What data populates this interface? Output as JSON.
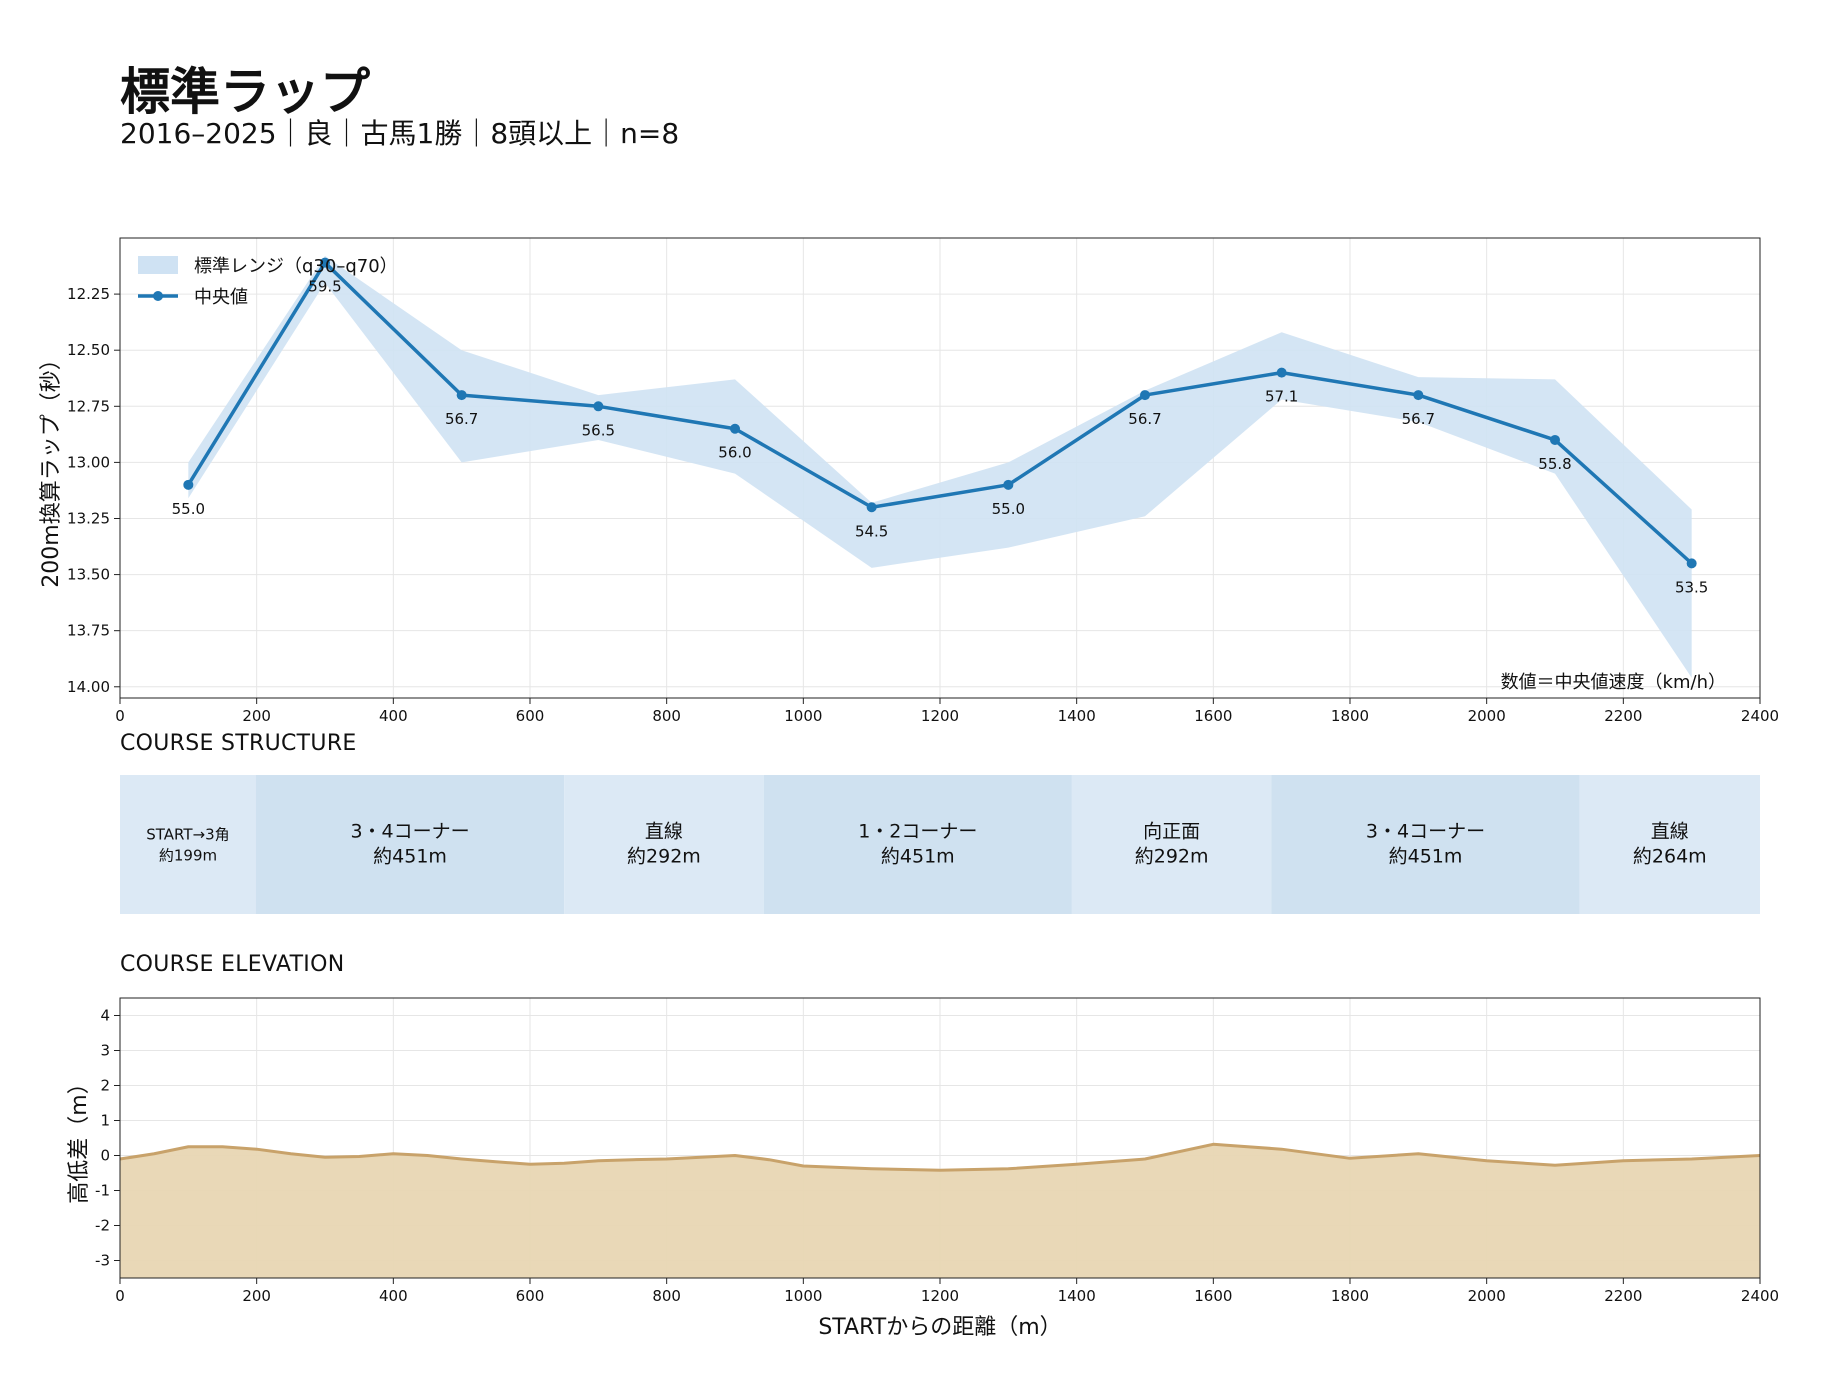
{
  "page": {
    "title": "標準ラップ",
    "subtitle": "2016–2025｜良｜古馬1勝｜8頭以上｜n=8",
    "structure_title": "COURSE STRUCTURE",
    "elevation_title": "COURSE ELEVATION"
  },
  "chart_data": [
    {
      "type": "line",
      "ylabel": "200m換算ラップ（秒）",
      "xlim": [
        0,
        2400
      ],
      "ylim": [
        14.05,
        12.0
      ],
      "y_inverted": true,
      "x_ticks": [
        0,
        200,
        400,
        600,
        800,
        1000,
        1200,
        1400,
        1600,
        1800,
        2000,
        2200,
        2400
      ],
      "y_ticks": [
        "12.25",
        "12.50",
        "12.75",
        "13.00",
        "13.25",
        "13.50",
        "13.75",
        "14.00"
      ],
      "grid": true,
      "legend_position": "top-left",
      "legend": [
        "標準レンジ（q30–q70）",
        "中央値"
      ],
      "annotation": "数値＝中央値速度（km/h）",
      "series": [
        {
          "name": "中央値",
          "x": [
            100,
            300,
            500,
            700,
            900,
            1100,
            1300,
            1500,
            1700,
            1900,
            2100,
            2300
          ],
          "y": [
            13.1,
            12.11,
            12.7,
            12.75,
            12.85,
            13.2,
            13.1,
            12.7,
            12.6,
            12.7,
            12.9,
            13.45
          ],
          "labels": [
            "55.0",
            "59.5",
            "56.7",
            "56.5",
            "56.0",
            "54.5",
            "55.0",
            "56.7",
            "57.1",
            "56.7",
            "55.8",
            "53.5"
          ],
          "color": "#1f77b4"
        },
        {
          "name": "標準レンジ（q30–q70）",
          "x": [
            100,
            300,
            500,
            700,
            900,
            1100,
            1300,
            1500,
            1700,
            1900,
            2100,
            2300
          ],
          "low": [
            13.0,
            12.08,
            12.5,
            12.7,
            12.63,
            13.18,
            13.0,
            12.68,
            12.42,
            12.62,
            12.63,
            13.21
          ],
          "high": [
            13.16,
            12.2,
            13.0,
            12.9,
            13.05,
            13.47,
            13.38,
            13.24,
            12.72,
            12.82,
            13.05,
            13.96
          ],
          "color": "#cfe2f3"
        }
      ]
    },
    {
      "type": "table",
      "segments": [
        {
          "name": "START→3角",
          "length": "約199m",
          "start": 0,
          "end": 199,
          "tone": "light"
        },
        {
          "name": "3・4コーナー",
          "length": "約451m",
          "start": 199,
          "end": 650,
          "tone": "dark"
        },
        {
          "name": "直線",
          "length": "約292m",
          "start": 650,
          "end": 942,
          "tone": "light"
        },
        {
          "name": "1・2コーナー",
          "length": "約451m",
          "start": 942,
          "end": 1393,
          "tone": "dark"
        },
        {
          "name": "向正面",
          "length": "約292m",
          "start": 1393,
          "end": 1685,
          "tone": "light"
        },
        {
          "name": "3・4コーナー",
          "length": "約451m",
          "start": 1685,
          "end": 2136,
          "tone": "dark"
        },
        {
          "name": "直線",
          "length": "約264m",
          "start": 2136,
          "end": 2400,
          "tone": "light"
        }
      ],
      "colors": {
        "light": "#dce9f5",
        "dark": "#cfe1f0"
      }
    },
    {
      "type": "area",
      "xlabel": "STARTからの距離（m）",
      "ylabel": "高低差（m）",
      "xlim": [
        0,
        2400
      ],
      "ylim": [
        -3.5,
        4.5
      ],
      "x_ticks": [
        0,
        200,
        400,
        600,
        800,
        1000,
        1200,
        1400,
        1600,
        1800,
        2000,
        2200,
        2400
      ],
      "y_ticks": [
        "4",
        "3",
        "2",
        "1",
        "0",
        "-1",
        "-2",
        "-3"
      ],
      "grid": true,
      "x": [
        0,
        50,
        100,
        150,
        200,
        250,
        300,
        350,
        400,
        450,
        500,
        550,
        600,
        650,
        700,
        750,
        800,
        850,
        900,
        950,
        1000,
        1100,
        1200,
        1300,
        1400,
        1500,
        1600,
        1700,
        1800,
        1900,
        2000,
        2100,
        2200,
        2300,
        2400
      ],
      "y": [
        -0.1,
        0.05,
        0.25,
        0.25,
        0.18,
        0.05,
        -0.05,
        -0.03,
        0.05,
        0.0,
        -0.1,
        -0.18,
        -0.25,
        -0.22,
        -0.15,
        -0.12,
        -0.1,
        -0.05,
        0.0,
        -0.12,
        -0.3,
        -0.38,
        -0.42,
        -0.38,
        -0.25,
        -0.1,
        0.32,
        0.18,
        -0.08,
        0.05,
        -0.15,
        -0.28,
        -0.15,
        -0.1,
        0.0
      ],
      "color": "#c8a26a",
      "fill": "#e8d6b3"
    }
  ]
}
